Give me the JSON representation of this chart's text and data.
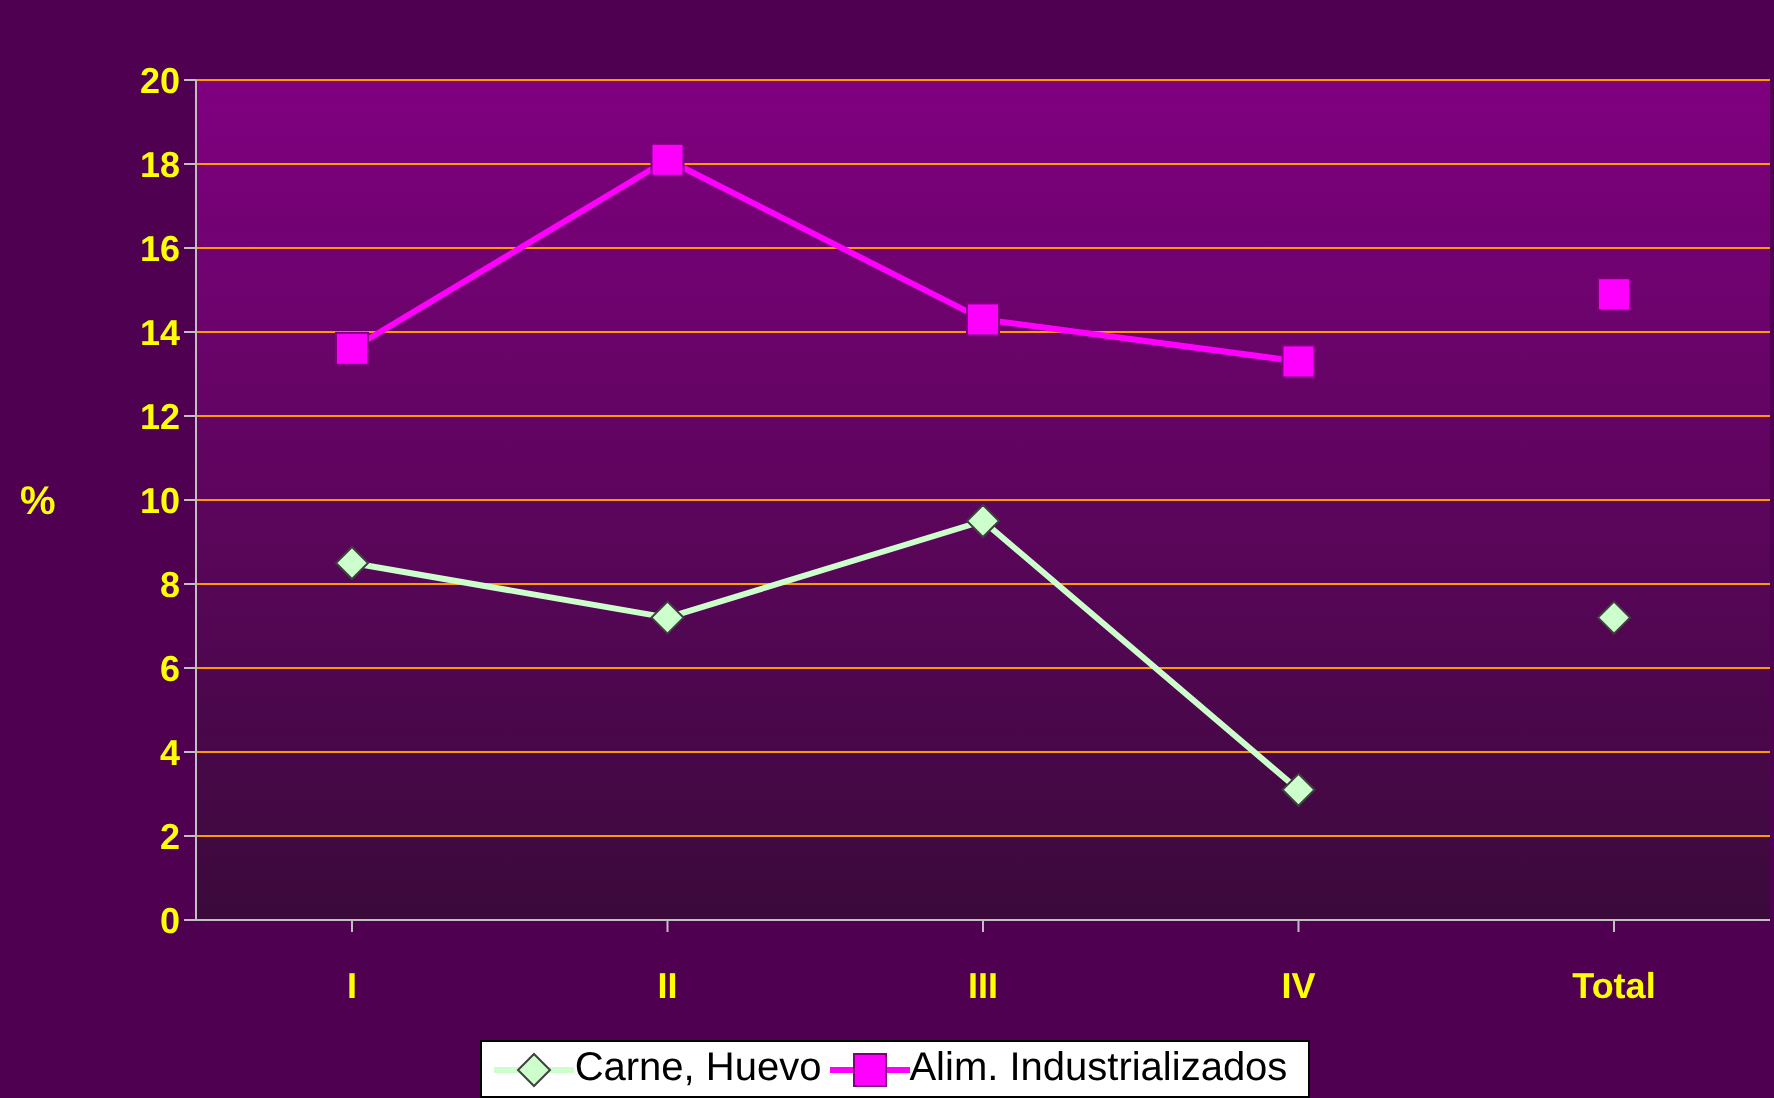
{
  "chart_data": {
    "type": "line",
    "ylabel": "%",
    "categories": [
      "I",
      "II",
      "III",
      "IV",
      "Total"
    ],
    "series": [
      {
        "name": "Carne, Huevo",
        "color": "#ccffcc",
        "marker": "diamond",
        "values": [
          8.5,
          7.2,
          9.5,
          3.1,
          null
        ]
      },
      {
        "name": "Alim. Industrializados",
        "color": "#ff00ff",
        "marker": "square",
        "values": [
          13.6,
          18.1,
          14.3,
          13.3,
          null
        ]
      },
      {
        "type": "scatter",
        "color": "#ccffcc",
        "marker": "diamond",
        "x": [
          "Total"
        ],
        "values": [
          7.2
        ]
      },
      {
        "type": "scatter",
        "color": "#ff00ff",
        "marker": "square",
        "x": [
          "Total"
        ],
        "values": [
          14.9
        ]
      }
    ],
    "ylim": [
      0,
      20
    ],
    "yticks": [
      0,
      2,
      4,
      6,
      8,
      10,
      12,
      14,
      16,
      18,
      20
    ],
    "grid": "y",
    "legend": "bottom"
  }
}
